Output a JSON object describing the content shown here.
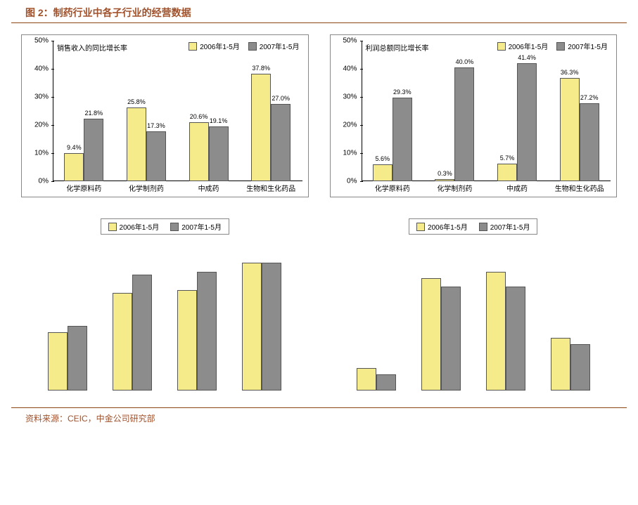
{
  "figure_title": "图 2：制药行业中各子行业的经营数据",
  "source": "资料来源：CEIC，中金公司研究部",
  "colors": {
    "series_2006": "#f5eb8b",
    "series_2007": "#8c8c8c",
    "axis": "#000000",
    "title": "#a0522d",
    "rule": "#8b4513"
  },
  "legend": {
    "s2006": "2006年1-5月",
    "s2007": "2007年1-5月"
  },
  "charts": [
    {
      "id": "chart-tl",
      "subtitle": "销售收入的同比增长率",
      "show_axes": true,
      "show_labels": true,
      "legend_inside": true,
      "ylim": [
        0,
        50
      ],
      "ytick_step": 10,
      "categories": [
        "化学原料药",
        "化学制剂药",
        "中成药",
        "生物和生化药品"
      ],
      "series": [
        {
          "key": "2006",
          "values": [
            9.4,
            25.8,
            20.6,
            37.8
          ]
        },
        {
          "key": "2007",
          "values": [
            21.8,
            17.3,
            19.1,
            27.0
          ]
        }
      ]
    },
    {
      "id": "chart-tr",
      "subtitle": "利润总额同比增长率",
      "show_axes": true,
      "show_labels": true,
      "legend_inside": true,
      "ylim": [
        0,
        50
      ],
      "ytick_step": 10,
      "categories": [
        "化学原料药",
        "化学制剂药",
        "中成药",
        "生物和生化药品"
      ],
      "series": [
        {
          "key": "2006",
          "values": [
            5.6,
            0.3,
            5.7,
            36.3
          ]
        },
        {
          "key": "2007",
          "values": [
            29.3,
            40.0,
            41.4,
            27.2
          ]
        }
      ]
    },
    {
      "id": "chart-bl",
      "subtitle": "",
      "show_axes": false,
      "show_labels": false,
      "legend_inside": false,
      "ylim": [
        0,
        50
      ],
      "ytick_step": 10,
      "categories": [
        "",
        "",
        "",
        ""
      ],
      "series": [
        {
          "key": "2006",
          "values": [
            19,
            32,
            33,
            42
          ]
        },
        {
          "key": "2007",
          "values": [
            21,
            38,
            39,
            42
          ]
        }
      ]
    },
    {
      "id": "chart-br",
      "subtitle": "",
      "show_axes": false,
      "show_labels": false,
      "legend_inside": false,
      "ylim": [
        0,
        50
      ],
      "ytick_step": 10,
      "categories": [
        "",
        "",
        "",
        ""
      ],
      "series": [
        {
          "key": "2006",
          "values": [
            7,
            37,
            39,
            17
          ]
        },
        {
          "key": "2007",
          "values": [
            5,
            34,
            34,
            15
          ]
        }
      ]
    }
  ]
}
